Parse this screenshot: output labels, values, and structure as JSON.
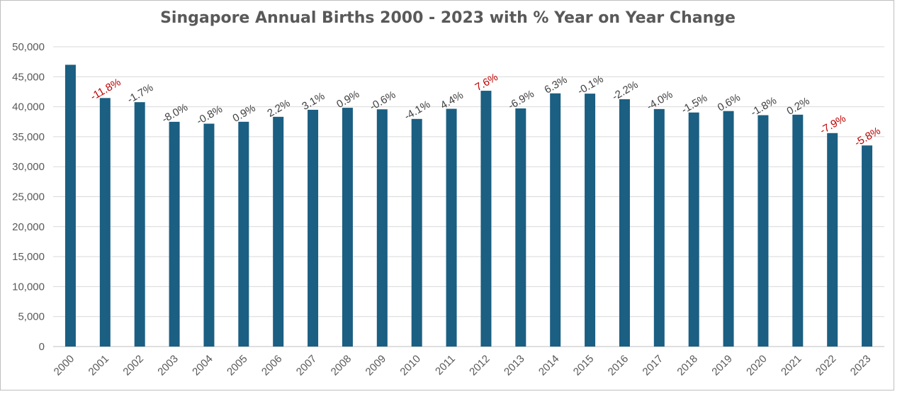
{
  "chart_data": {
    "type": "bar",
    "title": "Singapore Annual Births 2000 - 2023 with % Year on Year Change",
    "xlabel": "",
    "ylabel": "",
    "ylim": [
      0,
      50000
    ],
    "yticks": [
      "0",
      "5,000",
      "10,000",
      "15,000",
      "20,000",
      "25,000",
      "30,000",
      "35,000",
      "40,000",
      "45,000",
      "50,000"
    ],
    "ytick_values": [
      0,
      5000,
      10000,
      15000,
      20000,
      25000,
      30000,
      35000,
      40000,
      45000,
      50000
    ],
    "grid": true,
    "bar_color": "#1b5f82",
    "highlight_color": "#c00000",
    "normal_label_color": "#404040",
    "categories": [
      "2000",
      "2001",
      "2002",
      "2003",
      "2004",
      "2005",
      "2006",
      "2007",
      "2008",
      "2009",
      "2010",
      "2011",
      "2012",
      "2013",
      "2014",
      "2015",
      "2016",
      "2017",
      "2018",
      "2019",
      "2020",
      "2021",
      "2022",
      "2023"
    ],
    "values": [
      46997,
      41451,
      40760,
      37485,
      37174,
      37492,
      38317,
      39490,
      39826,
      39570,
      37967,
      39654,
      42663,
      39720,
      42232,
      42185,
      41251,
      39615,
      39039,
      39279,
      38590,
      38672,
      35605,
      33541
    ],
    "labels": [
      "",
      "-11.8%",
      "-1.7%",
      "-8.0%",
      "-0.8%",
      "0.9%",
      "2.2%",
      "3.1%",
      "0.9%",
      "-0.6%",
      "-4.1%",
      "4.4%",
      "7.6%",
      "-6.9%",
      "6.3%",
      "-0.1%",
      "-2.2%",
      "-4.0%",
      "-1.5%",
      "0.6%",
      "-1.8%",
      "0.2%",
      "-7.9%",
      "-5.8%"
    ],
    "highlighted": [
      false,
      true,
      false,
      false,
      false,
      false,
      false,
      false,
      false,
      false,
      false,
      false,
      true,
      false,
      false,
      false,
      false,
      false,
      false,
      false,
      false,
      false,
      true,
      true
    ]
  }
}
